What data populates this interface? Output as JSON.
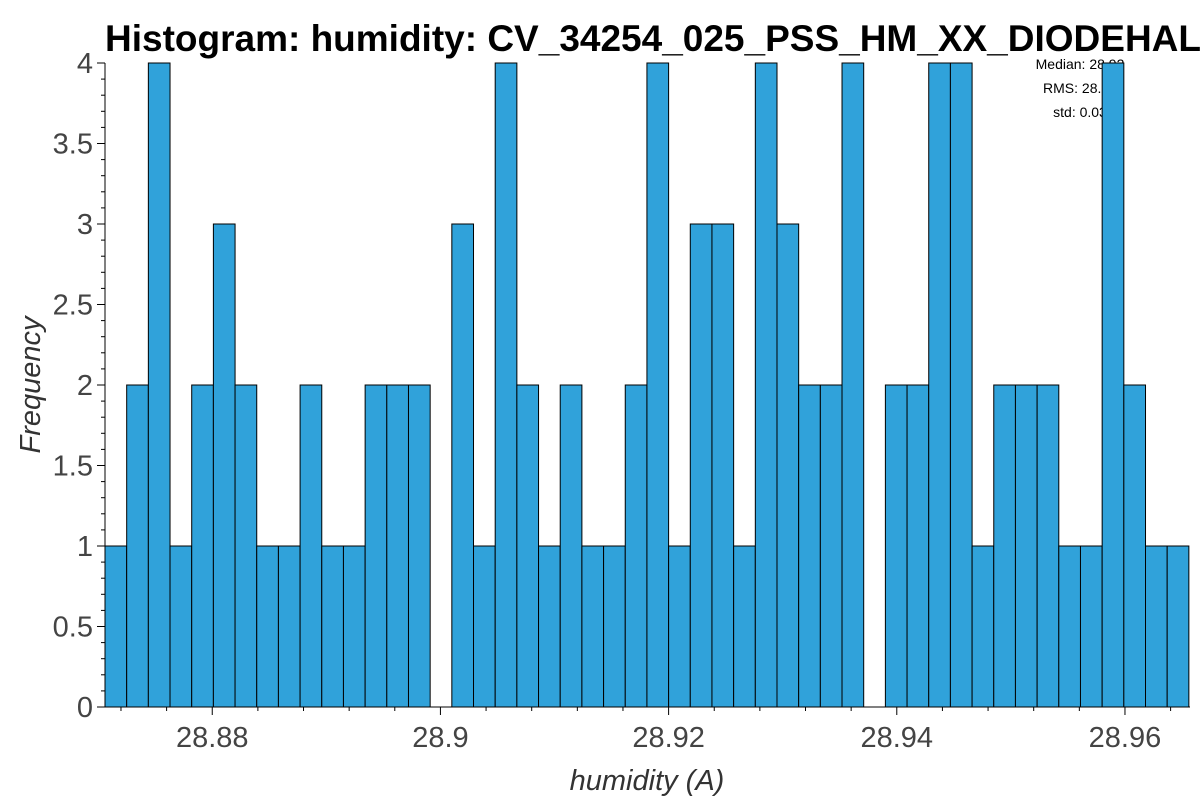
{
  "chart_data": {
    "type": "bar",
    "title": "Histogram: humidity: CV_34254_025_PSS_HM_XX_DIODEHAL",
    "xlabel": "humidity (A)",
    "ylabel": "Frequency",
    "xlim": [
      28.8706,
      28.9657
    ],
    "ylim": [
      0,
      4
    ],
    "grid": false,
    "bin_width": 0.0019,
    "bin_start": 28.8706,
    "values": [
      1,
      2,
      4,
      1,
      2,
      3,
      2,
      1,
      1,
      2,
      1,
      1,
      2,
      2,
      2,
      0,
      3,
      1,
      4,
      2,
      1,
      2,
      1,
      1,
      2,
      4,
      1,
      3,
      3,
      1,
      4,
      3,
      2,
      2,
      4,
      0,
      2,
      2,
      4,
      4,
      1,
      2,
      2,
      2,
      1,
      1,
      4,
      2,
      1,
      1
    ],
    "x_ticks": [
      "28.88",
      "28.9",
      "28.92",
      "28.94",
      "28.96"
    ],
    "x_tick_values": [
      28.88,
      28.9,
      28.92,
      28.94,
      28.96
    ],
    "y_ticks": [
      "0",
      "0.5",
      "1",
      "1.5",
      "2",
      "2.5",
      "3",
      "3.5",
      "4"
    ],
    "y_tick_values": [
      0,
      0.5,
      1,
      1.5,
      2,
      2.5,
      3,
      3.5,
      4
    ],
    "stats": [
      "Median: 28.92",
      "RMS: 28.92",
      "std: 0.03"
    ],
    "colors": {
      "bar_fill": "#30a2da",
      "bar_edge": "#000000"
    }
  }
}
